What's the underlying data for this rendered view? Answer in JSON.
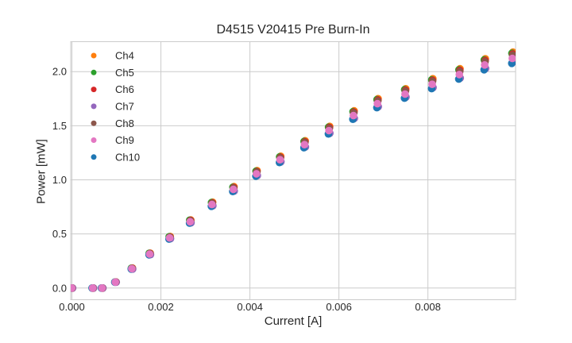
{
  "chart_data": {
    "type": "scatter",
    "title": "D4515 V20415 Pre Burn-In",
    "xlabel": "Current [A]",
    "ylabel": "Power [mW]",
    "xlim": [
      -2.7e-05,
      0.00997
    ],
    "ylim": [
      -0.108,
      2.277
    ],
    "grid": true,
    "legend_position": "upper-left",
    "grid_color": "#cbcbcb",
    "text_color": "#262626",
    "background": "#ffffff",
    "xticks": {
      "values": [
        0.0,
        0.002,
        0.004,
        0.006,
        0.008
      ],
      "labels": [
        "0.000",
        "0.002",
        "0.004",
        "0.006",
        "0.008"
      ]
    },
    "yticks": {
      "values": [
        0.0,
        0.5,
        1.0,
        1.5,
        2.0
      ],
      "labels": [
        "0.0",
        "0.5",
        "1.0",
        "1.5",
        "2.0"
      ]
    },
    "x": [
      0.0,
      0.00047,
      0.00068,
      0.00098,
      0.00135,
      0.00175,
      0.0022,
      0.00266,
      0.00315,
      0.00363,
      0.00415,
      0.00468,
      0.00523,
      0.00578,
      0.00633,
      0.00687,
      0.00749,
      0.0081,
      0.00871,
      0.00928,
      0.0099
    ],
    "series": [
      {
        "name": "Ch4",
        "color": "#ff7f0e",
        "values": [
          0.0,
          0.0,
          0.0,
          0.056,
          0.184,
          0.322,
          0.476,
          0.629,
          0.793,
          0.937,
          1.085,
          1.218,
          1.361,
          1.494,
          1.638,
          1.75,
          1.842,
          1.934,
          2.027,
          2.119,
          2.18
        ]
      },
      {
        "name": "Ch5",
        "color": "#2ca02c",
        "values": [
          0.0,
          0.0,
          0.0,
          0.056,
          0.183,
          0.321,
          0.474,
          0.627,
          0.79,
          0.932,
          1.08,
          1.212,
          1.355,
          1.487,
          1.63,
          1.742,
          1.834,
          1.925,
          2.017,
          2.109,
          2.17
        ]
      },
      {
        "name": "Ch6",
        "color": "#d62728",
        "values": [
          0.0,
          0.0,
          0.0,
          0.056,
          0.183,
          0.32,
          0.472,
          0.625,
          0.787,
          0.929,
          1.076,
          1.208,
          1.351,
          1.483,
          1.625,
          1.737,
          1.828,
          1.919,
          2.011,
          2.102,
          2.163
        ]
      },
      {
        "name": "Ch7",
        "color": "#9467bd",
        "values": [
          0.0,
          0.0,
          0.0,
          0.054,
          0.176,
          0.309,
          0.456,
          0.603,
          0.76,
          0.897,
          1.039,
          1.167,
          1.304,
          1.431,
          1.568,
          1.676,
          1.765,
          1.853,
          1.941,
          2.029,
          2.088
        ]
      },
      {
        "name": "Ch8",
        "color": "#8c564b",
        "values": [
          0.0,
          0.0,
          0.0,
          0.056,
          0.182,
          0.318,
          0.47,
          0.621,
          0.783,
          0.924,
          1.071,
          1.202,
          1.344,
          1.475,
          1.617,
          1.728,
          1.819,
          1.91,
          2.0,
          2.091,
          2.152
        ]
      },
      {
        "name": "Ch9",
        "color": "#e377c2",
        "values": [
          0.0,
          0.0,
          0.0,
          0.055,
          0.179,
          0.314,
          0.463,
          0.613,
          0.772,
          0.912,
          1.056,
          1.186,
          1.325,
          1.455,
          1.594,
          1.704,
          1.793,
          1.883,
          1.973,
          2.062,
          2.122
        ]
      },
      {
        "name": "Ch10",
        "color": "#1f77b4",
        "values": [
          0.0,
          0.0,
          0.0,
          0.054,
          0.175,
          0.307,
          0.453,
          0.6,
          0.756,
          0.892,
          1.034,
          1.16,
          1.297,
          1.424,
          1.56,
          1.667,
          1.755,
          1.843,
          1.931,
          2.018,
          2.077
        ]
      }
    ],
    "z_order": [
      "Ch4",
      "Ch5",
      "Ch6",
      "Ch7",
      "Ch8",
      "Ch10",
      "Ch9"
    ]
  }
}
